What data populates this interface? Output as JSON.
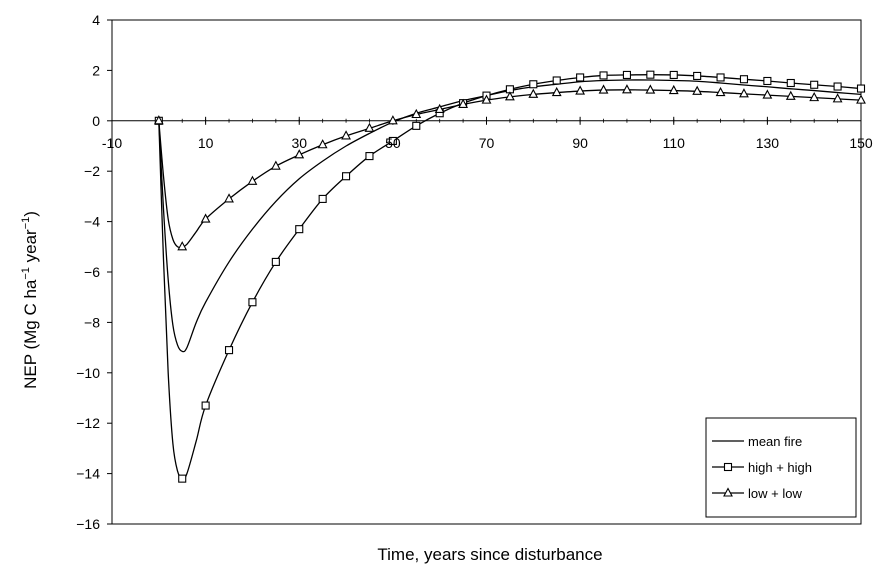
{
  "chart_data": {
    "type": "line",
    "title": "",
    "xlabel": "Time, years since disturbance",
    "ylabel": "NEP (Mg C ha",
    "ylabel_sup1": "−1",
    "ylabel_mid": " year",
    "ylabel_sup2": "−1",
    "ylabel_end": ")",
    "xlim": [
      -10,
      150
    ],
    "ylim": [
      -16,
      4
    ],
    "xticks": [
      -10,
      10,
      30,
      50,
      70,
      90,
      110,
      130,
      150
    ],
    "yticks": [
      4,
      2,
      0,
      -2,
      -4,
      -6,
      -8,
      -10,
      -12,
      -14,
      -16
    ],
    "xtick_labels": [
      "-10",
      "10",
      "30",
      "50",
      "70",
      "90",
      "110",
      "130",
      "150"
    ],
    "ytick_labels": [
      "4",
      "2",
      "0",
      "−2",
      "−4",
      "−6",
      "−8",
      "−10",
      "−12",
      "−14",
      "−16"
    ],
    "grid": false,
    "legend_position": "bottom-right",
    "series": [
      {
        "name": "mean fire",
        "marker": "none",
        "color": "#000000",
        "x": [
          0,
          1,
          2,
          3,
          4,
          5,
          6,
          8,
          10,
          15,
          20,
          25,
          30,
          35,
          40,
          45,
          50,
          55,
          60,
          65,
          70,
          75,
          80,
          85,
          90,
          95,
          100,
          105,
          110,
          115,
          120,
          125,
          130,
          135,
          140,
          145,
          150
        ],
        "y": [
          0,
          -3.5,
          -6.3,
          -8.1,
          -8.9,
          -9.15,
          -9.0,
          -8.0,
          -7.2,
          -5.6,
          -4.3,
          -3.2,
          -2.3,
          -1.6,
          -1.0,
          -0.5,
          -0.05,
          0.3,
          0.55,
          0.8,
          1.0,
          1.2,
          1.35,
          1.45,
          1.55,
          1.6,
          1.62,
          1.62,
          1.6,
          1.57,
          1.5,
          1.42,
          1.35,
          1.27,
          1.2,
          1.12,
          1.05
        ]
      },
      {
        "name": "high + high",
        "marker": "square",
        "color": "#000000",
        "x": [
          0,
          1,
          2,
          3,
          4,
          5,
          6,
          8,
          10,
          15,
          20,
          25,
          30,
          35,
          40,
          45,
          50,
          55,
          60,
          65,
          70,
          75,
          80,
          85,
          90,
          95,
          100,
          105,
          110,
          115,
          120,
          125,
          130,
          135,
          140,
          145,
          150
        ],
        "y": [
          0,
          -5.5,
          -10.0,
          -12.8,
          -13.9,
          -14.2,
          -14.0,
          -12.7,
          -11.3,
          -9.1,
          -7.2,
          -5.6,
          -4.3,
          -3.1,
          -2.2,
          -1.4,
          -0.8,
          -0.2,
          0.3,
          0.7,
          1.0,
          1.25,
          1.45,
          1.6,
          1.72,
          1.8,
          1.82,
          1.83,
          1.82,
          1.78,
          1.72,
          1.65,
          1.58,
          1.5,
          1.43,
          1.36,
          1.28
        ],
        "marker_x": [
          0,
          5,
          10,
          15,
          20,
          25,
          30,
          35,
          40,
          45,
          50,
          55,
          60,
          65,
          70,
          75,
          80,
          85,
          90,
          95,
          100,
          105,
          110,
          115,
          120,
          125,
          130,
          135,
          140,
          145,
          150
        ]
      },
      {
        "name": "low + low",
        "marker": "triangle",
        "color": "#000000",
        "x": [
          0,
          1,
          2,
          3,
          4,
          5,
          6,
          8,
          10,
          15,
          20,
          25,
          30,
          35,
          40,
          45,
          50,
          55,
          60,
          65,
          70,
          75,
          80,
          85,
          90,
          95,
          100,
          105,
          110,
          115,
          120,
          125,
          130,
          135,
          140,
          145,
          150
        ],
        "y": [
          0,
          -2.2,
          -3.9,
          -4.7,
          -5.0,
          -5.0,
          -4.9,
          -4.4,
          -3.9,
          -3.1,
          -2.4,
          -1.8,
          -1.35,
          -0.95,
          -0.6,
          -0.3,
          0.0,
          0.25,
          0.45,
          0.65,
          0.82,
          0.95,
          1.05,
          1.12,
          1.18,
          1.22,
          1.23,
          1.22,
          1.2,
          1.17,
          1.12,
          1.07,
          1.02,
          0.97,
          0.92,
          0.87,
          0.82
        ],
        "marker_x": [
          0,
          5,
          10,
          15,
          20,
          25,
          30,
          35,
          40,
          45,
          50,
          55,
          60,
          65,
          70,
          75,
          80,
          85,
          90,
          95,
          100,
          105,
          110,
          115,
          120,
          125,
          130,
          135,
          140,
          145,
          150
        ]
      }
    ]
  }
}
